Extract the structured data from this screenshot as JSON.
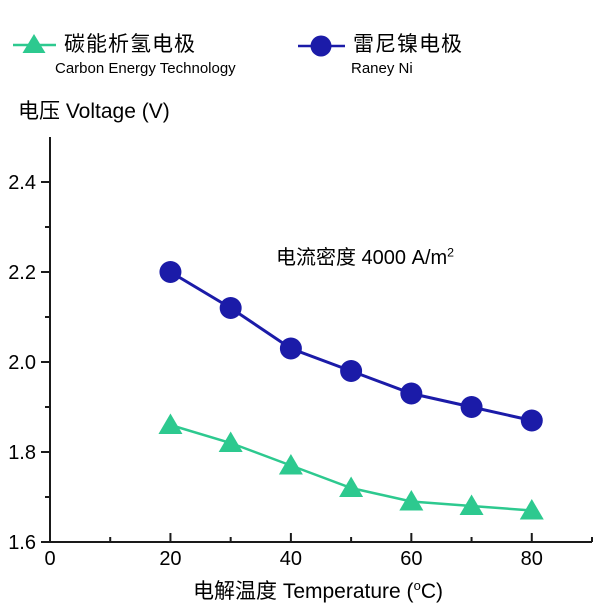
{
  "colors": {
    "green": "#2dc98f",
    "blue": "#1b1ba8",
    "axis": "#1a1a1a",
    "text": "#000000"
  },
  "legend": {
    "items": [
      {
        "label_cn": "碳能析氢电极",
        "label_en": "Carbon Energy Technology",
        "marker": "triangle-icon",
        "color": "#2dc98f"
      },
      {
        "label_cn": "雷尼镍电极",
        "label_en": "Raney Ni",
        "marker": "circle-icon",
        "color": "#1b1ba8"
      }
    ]
  },
  "y_axis_title": {
    "text": "电压 Voltage (V)"
  },
  "x_axis_title": {
    "pre": "电解温度 Temperature (",
    "sup": "o",
    "post": "C)"
  },
  "annotation": {
    "pre": "电流密度 4000 A/m",
    "sup": "2"
  },
  "chart_data": {
    "type": "line",
    "title": "",
    "xlabel": "电解温度 Temperature (°C)",
    "ylabel": "电压 Voltage (V)",
    "annotation": "电流密度 4000 A/m²",
    "grid": false,
    "legend_position": "top-left",
    "xlim": [
      0,
      90
    ],
    "ylim": [
      1.6,
      2.5
    ],
    "xticks": [
      0,
      20,
      40,
      60,
      80
    ],
    "xticks_minor": [
      10,
      30,
      50,
      70,
      90
    ],
    "yticks": [
      "1.6",
      "1.8",
      "2.0",
      "2.2",
      "2.4"
    ],
    "yticks_minor": [
      1.7,
      1.9,
      2.1,
      2.3
    ],
    "x": [
      20,
      30,
      40,
      50,
      60,
      70,
      80
    ],
    "series": [
      {
        "name": "碳能析氢电极 Carbon Energy Technology",
        "marker": "triangle",
        "color": "#2dc98f",
        "values": [
          1.86,
          1.82,
          1.77,
          1.72,
          1.69,
          1.68,
          1.67
        ]
      },
      {
        "name": "雷尼镍电极 Raney Ni",
        "marker": "circle",
        "color": "#1b1ba8",
        "values": [
          2.2,
          2.12,
          2.03,
          1.98,
          1.93,
          1.9,
          1.87
        ]
      }
    ]
  }
}
